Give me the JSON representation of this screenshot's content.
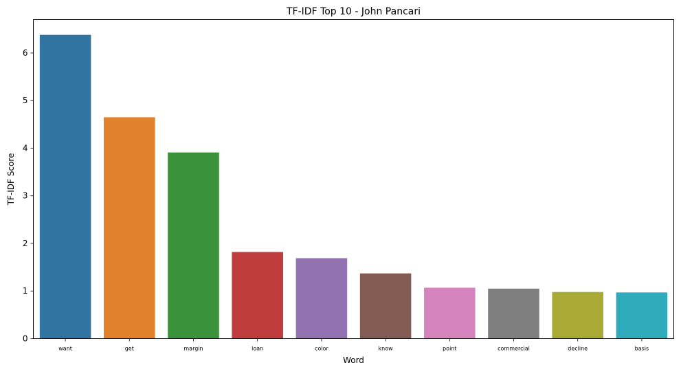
{
  "chart_data": {
    "type": "bar",
    "title": "TF-IDF Top 10 - John Pancari",
    "xlabel": "Word",
    "ylabel": "TF-IDF Score",
    "categories": [
      "want",
      "get",
      "margin",
      "loan",
      "color",
      "know",
      "point",
      "commercial",
      "decline",
      "basis"
    ],
    "values": [
      6.38,
      4.65,
      3.91,
      1.82,
      1.69,
      1.37,
      1.07,
      1.05,
      0.98,
      0.97
    ],
    "colors": [
      "#3274a1",
      "#e1812c",
      "#3a923a",
      "#c03d3e",
      "#9372b2",
      "#845b53",
      "#d684bd",
      "#7f7f7f",
      "#a9aa35",
      "#2fabbb"
    ],
    "ylim": [
      0,
      6.7
    ],
    "yticks": [
      "0",
      "1",
      "2",
      "3",
      "4",
      "5",
      "6"
    ],
    "grid": false,
    "legend": "none"
  }
}
